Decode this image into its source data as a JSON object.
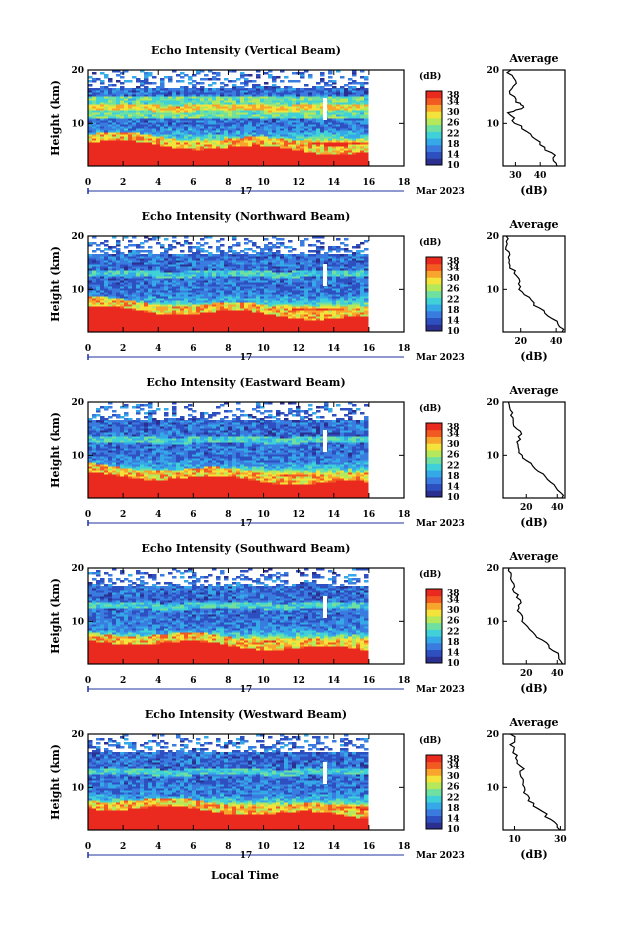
{
  "colors": {
    "scale": [
      "#2b2f8f",
      "#2d4fc0",
      "#3a7be0",
      "#35a8e8",
      "#3fd0d8",
      "#6fe0a0",
      "#b5e85a",
      "#f3e33a",
      "#f7a52d",
      "#f35a22",
      "#ea2a1e"
    ],
    "axis": "#000000"
  },
  "panels": [
    {
      "title": "Echo Intensity (Vertical Beam)",
      "avg_ticks": [
        "30",
        "40"
      ],
      "avg_range": [
        25,
        50
      ]
    },
    {
      "title": "Echo Intensity (Northward Beam)",
      "avg_ticks": [
        "20",
        "40"
      ],
      "avg_range": [
        10,
        45
      ]
    },
    {
      "title": "Echo Intensity (Eastward Beam)",
      "avg_ticks": [
        "20",
        "40"
      ],
      "avg_range": [
        5,
        45
      ]
    },
    {
      "title": "Echo Intensity (Southward Beam)",
      "avg_ticks": [
        "20",
        "40"
      ],
      "avg_range": [
        5,
        45
      ]
    },
    {
      "title": "Echo Intensity (Westward Beam)",
      "avg_ticks": [
        "10",
        "30"
      ],
      "avg_range": [
        5,
        32
      ]
    }
  ],
  "labels": {
    "ylabel": "Height (km)",
    "dB_unit": "(dB)",
    "avg_title": "Average",
    "day_label": "17",
    "month_label": "Mar 2023",
    "xlabel": "Local Time"
  },
  "x_ticks": [
    "0",
    "2",
    "4",
    "6",
    "8",
    "10",
    "12",
    "14",
    "16",
    "18"
  ],
  "y_ticks": [
    "20",
    "10"
  ],
  "colorbar_ticks": [
    "38",
    "34",
    "30",
    "26",
    "22",
    "18",
    "14",
    "10"
  ],
  "chart_data": {
    "type": "heatmap",
    "x_range": [
      0,
      18
    ],
    "data_x_extent": [
      0,
      16
    ],
    "y_range": [
      2,
      20
    ],
    "colorbar_range": [
      10,
      38
    ],
    "series": [
      {
        "name": "Vertical Beam",
        "average_profile": {
          "height_km": [
            2,
            4,
            6,
            8,
            10,
            12,
            13,
            14,
            16,
            18,
            20
          ],
          "dB": [
            48,
            45,
            41,
            36,
            30,
            27,
            33,
            31,
            28,
            30,
            27
          ]
        }
      },
      {
        "name": "Northward Beam",
        "average_profile": {
          "height_km": [
            2,
            4,
            6,
            8,
            10,
            12,
            14,
            16,
            18,
            20
          ],
          "dB": [
            44,
            40,
            32,
            25,
            20,
            18,
            15,
            14,
            12,
            12
          ]
        }
      },
      {
        "name": "Eastward Beam",
        "average_profile": {
          "height_km": [
            2,
            4,
            6,
            8,
            10,
            12,
            14,
            16,
            18,
            20
          ],
          "dB": [
            44,
            40,
            32,
            24,
            17,
            14,
            16,
            12,
            10,
            9
          ]
        }
      },
      {
        "name": "Southward Beam",
        "average_profile": {
          "height_km": [
            2,
            4,
            6,
            8,
            10,
            12,
            14,
            16,
            18,
            20
          ],
          "dB": [
            44,
            40,
            32,
            24,
            18,
            15,
            16,
            12,
            10,
            9
          ]
        }
      },
      {
        "name": "Westward Beam",
        "average_profile": {
          "height_km": [
            2,
            4,
            6,
            8,
            10,
            12,
            14,
            16,
            18,
            20
          ],
          "dB": [
            30,
            26,
            20,
            16,
            14,
            13,
            13,
            10,
            9,
            9
          ]
        }
      }
    ]
  }
}
